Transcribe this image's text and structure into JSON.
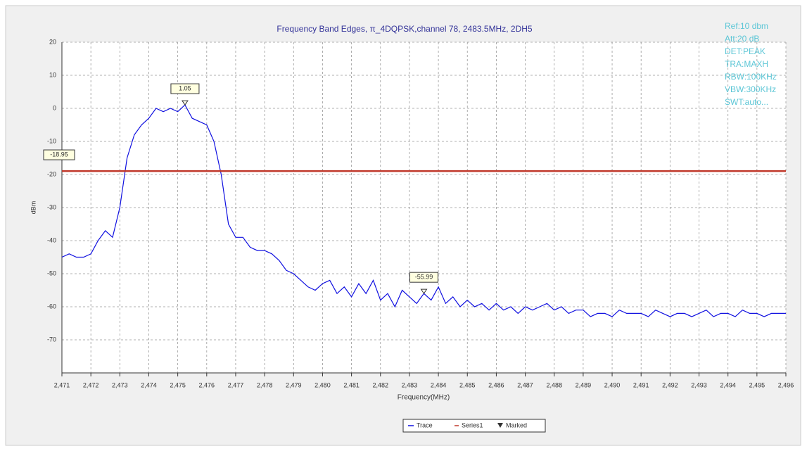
{
  "chart_data": {
    "type": "line",
    "title": "Frequency Band Edges, π_4DQPSK,channel 78, 2483.5MHz, 2DH5",
    "x_label": "Frequency(MHz)",
    "y_label": "dBm",
    "info": [
      "Ref:10 dbm",
      "Att:20 dB",
      "DET:PEAK",
      "TRA:MAXH",
      "RBW:100KHz",
      "VBW:300KHz",
      "SWT:auto..."
    ],
    "xlim": [
      2471,
      2496
    ],
    "ylim": [
      -80,
      20
    ],
    "xticks": [
      {
        "value": 2471,
        "label": "2,471"
      },
      {
        "value": 2472,
        "label": "2,472"
      },
      {
        "value": 2473,
        "label": "2,473"
      },
      {
        "value": 2474,
        "label": "2,474"
      },
      {
        "value": 2475,
        "label": "2,475"
      },
      {
        "value": 2476,
        "label": "2,476"
      },
      {
        "value": 2477,
        "label": "2,477"
      },
      {
        "value": 2478,
        "label": "2,478"
      },
      {
        "value": 2479,
        "label": "2,479"
      },
      {
        "value": 2480,
        "label": "2,480"
      },
      {
        "value": 2481,
        "label": "2,481"
      },
      {
        "value": 2482,
        "label": "2,482"
      },
      {
        "value": 2483,
        "label": "2,483"
      },
      {
        "value": 2484,
        "label": "2,484"
      },
      {
        "value": 2485,
        "label": "2,485"
      },
      {
        "value": 2486,
        "label": "2,486"
      },
      {
        "value": 2487,
        "label": "2,487"
      },
      {
        "value": 2488,
        "label": "2,488"
      },
      {
        "value": 2489,
        "label": "2,489"
      },
      {
        "value": 2490,
        "label": "2,490"
      },
      {
        "value": 2491,
        "label": "2,491"
      },
      {
        "value": 2492,
        "label": "2,492"
      },
      {
        "value": 2493,
        "label": "2,493"
      },
      {
        "value": 2494,
        "label": "2,494"
      },
      {
        "value": 2495,
        "label": "2,495"
      },
      {
        "value": 2496,
        "label": "2,496"
      }
    ],
    "yticks": [
      -70,
      -60,
      -50,
      -40,
      -30,
      -20,
      -10,
      0,
      10,
      20
    ],
    "grid": true,
    "series": [
      {
        "name": "Trace",
        "color": "#1010e0",
        "x": [
          2471,
          2471.25,
          2471.5,
          2471.75,
          2472,
          2472.25,
          2472.5,
          2472.75,
          2473,
          2473.25,
          2473.5,
          2473.75,
          2474,
          2474.25,
          2474.5,
          2474.75,
          2475,
          2475.25,
          2475.5,
          2475.75,
          2476,
          2476.25,
          2476.5,
          2476.75,
          2477,
          2477.25,
          2477.5,
          2477.75,
          2478,
          2478.25,
          2478.5,
          2478.75,
          2479,
          2479.25,
          2479.5,
          2479.75,
          2480,
          2480.25,
          2480.5,
          2480.75,
          2481,
          2481.25,
          2481.5,
          2481.75,
          2482,
          2482.25,
          2482.5,
          2482.75,
          2483,
          2483.25,
          2483.5,
          2483.75,
          2484,
          2484.25,
          2484.5,
          2484.75,
          2485,
          2485.25,
          2485.5,
          2485.75,
          2486,
          2486.25,
          2486.5,
          2486.75,
          2487,
          2487.25,
          2487.5,
          2487.75,
          2488,
          2488.25,
          2488.5,
          2488.75,
          2489,
          2489.25,
          2489.5,
          2489.75,
          2490,
          2490.25,
          2490.5,
          2490.75,
          2491,
          2491.25,
          2491.5,
          2491.75,
          2492,
          2492.25,
          2492.5,
          2492.75,
          2493,
          2493.25,
          2493.5,
          2493.75,
          2494,
          2494.25,
          2494.5,
          2494.75,
          2495,
          2495.25,
          2495.5,
          2495.75,
          2496
        ],
        "values": [
          -45,
          -44,
          -45,
          -45,
          -44,
          -40,
          -37,
          -39,
          -30,
          -15,
          -8,
          -5,
          -3,
          0,
          -1,
          0,
          -1,
          1.05,
          -3,
          -4,
          -5,
          -10,
          -20,
          -35,
          -39,
          -39,
          -42,
          -43,
          -43,
          -44,
          -46,
          -49,
          -50,
          -52,
          -54,
          -55,
          -53,
          -52,
          -56,
          -54,
          -57,
          -53,
          -56,
          -52,
          -58,
          -56,
          -60,
          -55,
          -57,
          -59,
          -56,
          -58,
          -54,
          -59,
          -57,
          -60,
          -58,
          -60,
          -59,
          -61,
          -59,
          -61,
          -60,
          -62,
          -60,
          -61,
          -60,
          -59,
          -61,
          -60,
          -62,
          -61,
          -61,
          -63,
          -62,
          -62,
          -63,
          -61,
          -62,
          -62,
          -62,
          -63,
          -61,
          -62,
          -63,
          -62,
          -62,
          -63,
          -62,
          -61,
          -63,
          -62,
          -62,
          -63,
          -61,
          -62,
          -62,
          -63,
          -62,
          -62,
          -62
        ]
      },
      {
        "name": "Series1",
        "color": "#c0392b",
        "x": [
          2471,
          2496
        ],
        "values": [
          -18.95,
          -18.95
        ]
      }
    ],
    "markers": [
      {
        "x": 2475.25,
        "value": 1.05
      },
      {
        "x": 2483.5,
        "value": -55.99
      }
    ],
    "marked_label": "Marked"
  }
}
